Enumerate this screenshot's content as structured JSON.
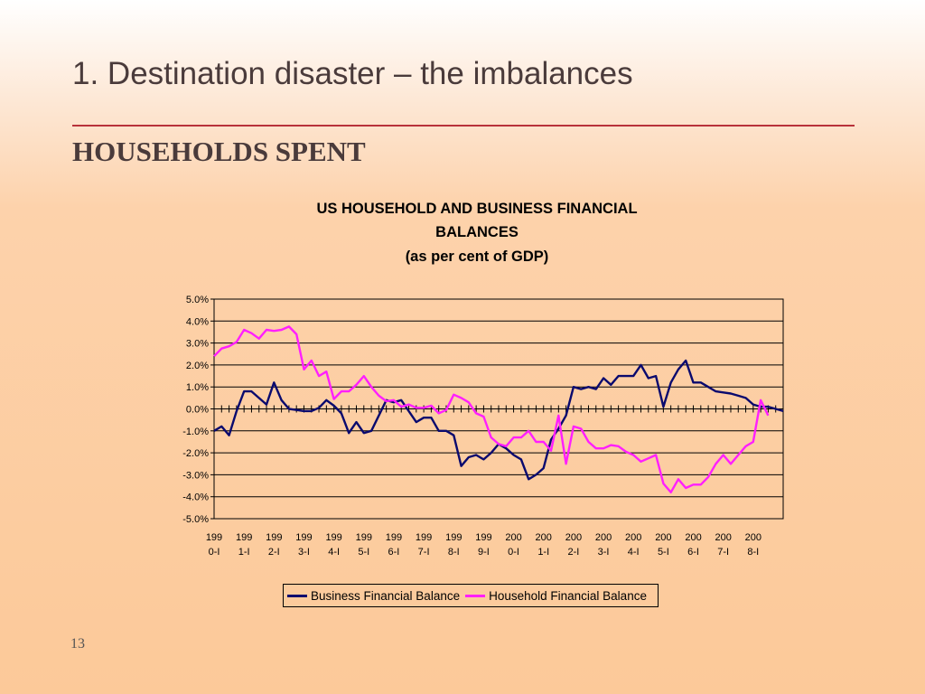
{
  "slide": {
    "title": "1. Destination disaster – the imbalances",
    "heading": "HOUSEHOLDS SPENT",
    "page_number": "13"
  },
  "colors": {
    "business": "#0a0a6e",
    "household": "#ff1fff",
    "rule": "#b8323a"
  },
  "chart_data": {
    "type": "line",
    "title": [
      "US HOUSEHOLD AND BUSINESS FINANCIAL",
      "BALANCES",
      "(as per cent of GDP)"
    ],
    "xlabel": "",
    "ylabel": "",
    "ylim": [
      -5.0,
      5.0
    ],
    "y_ticks": [
      "5.0%",
      "4.0%",
      "3.0%",
      "2.0%",
      "1.0%",
      "0.0%",
      "-1.0%",
      "-2.0%",
      "-3.0%",
      "-4.0%",
      "-5.0%"
    ],
    "x_tick_labels": [
      [
        "199",
        "0-I"
      ],
      [
        "199",
        "1-I"
      ],
      [
        "199",
        "2-I"
      ],
      [
        "199",
        "3-I"
      ],
      [
        "199",
        "4-I"
      ],
      [
        "199",
        "5-I"
      ],
      [
        "199",
        "6-I"
      ],
      [
        "199",
        "7-I"
      ],
      [
        "199",
        "8-I"
      ],
      [
        "199",
        "9-I"
      ],
      [
        "200",
        "0-I"
      ],
      [
        "200",
        "1-I"
      ],
      [
        "200",
        "2-I"
      ],
      [
        "200",
        "3-I"
      ],
      [
        "200",
        "4-I"
      ],
      [
        "200",
        "5-I"
      ],
      [
        "200",
        "6-I"
      ],
      [
        "200",
        "7-I"
      ],
      [
        "200",
        "8-I"
      ]
    ],
    "x_start_quarter": "1990-I",
    "grid": "horizontal",
    "legend": "bottom",
    "series": [
      {
        "name": "Business Financial Balance",
        "values": [
          -1.0,
          -0.8,
          -1.2,
          -0.1,
          0.8,
          0.8,
          0.5,
          0.2,
          1.2,
          0.4,
          0.0,
          -0.05,
          -0.1,
          -0.1,
          0.05,
          0.4,
          0.15,
          -0.2,
          -1.1,
          -0.6,
          -1.1,
          -1.0,
          -0.3,
          0.4,
          0.3,
          0.4,
          -0.1,
          -0.6,
          -0.4,
          -0.4,
          -1.0,
          -1.0,
          -1.2,
          -2.6,
          -2.2,
          -2.1,
          -2.3,
          -2.0,
          -1.6,
          -1.8,
          -2.1,
          -2.3,
          -3.2,
          -3.0,
          -2.7,
          -1.4,
          -0.9,
          -0.3,
          1.0,
          0.9,
          1.0,
          0.9,
          1.4,
          1.1,
          1.5,
          1.5,
          1.5,
          2.0,
          1.4,
          1.5,
          0.1,
          1.2,
          1.8,
          2.2,
          1.2,
          1.2,
          1.0,
          0.8,
          0.75,
          0.7,
          0.6,
          0.5,
          0.2,
          0.1,
          0.1,
          0.0,
          -0.1
        ]
      },
      {
        "name": "Household Financial Balance",
        "values": [
          2.4,
          2.75,
          2.85,
          3.05,
          3.6,
          3.45,
          3.2,
          3.6,
          3.55,
          3.6,
          3.75,
          3.4,
          1.8,
          2.2,
          1.5,
          1.7,
          0.45,
          0.8,
          0.8,
          1.1,
          1.5,
          1.0,
          0.6,
          0.35,
          0.4,
          0.1,
          0.2,
          0.05,
          0.05,
          0.15,
          -0.2,
          -0.05,
          0.65,
          0.5,
          0.3,
          -0.2,
          -0.35,
          -1.3,
          -1.6,
          -1.7,
          -1.3,
          -1.3,
          -1.0,
          -1.5,
          -1.5,
          -1.9,
          -0.3,
          -2.5,
          -0.8,
          -0.9,
          -1.5,
          -1.8,
          -1.8,
          -1.65,
          -1.7,
          -1.95,
          -2.1,
          -2.4,
          -2.25,
          -2.1,
          -3.4,
          -3.8,
          -3.2,
          -3.6,
          -3.45,
          -3.45,
          -3.1,
          -2.5,
          -2.1,
          -2.5,
          -2.1,
          -1.7,
          -1.5,
          0.4,
          -0.3
        ]
      }
    ]
  }
}
